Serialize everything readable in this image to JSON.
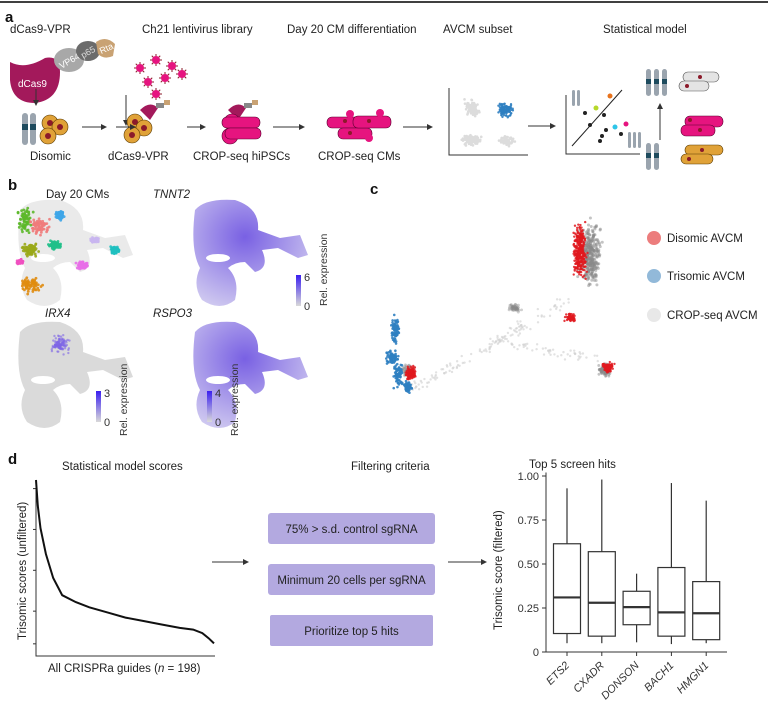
{
  "panel_labels": {
    "a": "a",
    "b": "b",
    "c": "c",
    "d": "d"
  },
  "panel_a": {
    "steps_top": [
      "dCas9-VPR",
      "Ch21 lentivirus library",
      "Day 20 CM differentiation",
      "AVCM subset",
      "Statistical model"
    ],
    "steps_bottom": [
      "Disomic",
      "dCas9-VPR",
      "CROP-seq hiPSCs",
      "CROP-seq CMs"
    ],
    "construct_domains": [
      "dCas9",
      "VP64",
      "p65",
      "Rta"
    ],
    "colors": {
      "dcas9": "#a3195b",
      "vp64": "#a8a8a8",
      "p65": "#6b6b6b",
      "rta": "#c9a273",
      "cell_disomic": "#e0a238",
      "cell_crop": "#e6147f",
      "nucleus": "#8b1a2a",
      "avcm_blue": "#2f7fc1",
      "scatter_grey": "#d8d8d8"
    }
  },
  "panel_b": {
    "subpanels": [
      {
        "title": "Day 20 CMs",
        "italic": false
      },
      {
        "title": "TNNT2",
        "italic": true,
        "colorbar_max": "6",
        "colorbar_min": "0"
      },
      {
        "title": "IRX4",
        "italic": true,
        "colorbar_max": "3",
        "colorbar_min": "0"
      },
      {
        "title": "RSPO3",
        "italic": true,
        "colorbar_max": "4",
        "colorbar_min": "0"
      }
    ],
    "colorbar_label": "Rel. expression",
    "colorbar_colors": {
      "low": "#d9d9d9",
      "high": "#3a1ff0"
    }
  },
  "panel_c": {
    "legend": [
      {
        "label": "Disomic AVCM",
        "color": "#ec7d7d"
      },
      {
        "label": "Trisomic AVCM",
        "color": "#92b9d9"
      },
      {
        "label": "CROP-seq AVCM",
        "color": "#e8e8e8"
      }
    ],
    "point_colors": {
      "disomic": "#e0191e",
      "trisomic": "#2f7fc1",
      "crop": "#8a8a8a"
    }
  },
  "panel_d": {
    "left_title": "Statistical model scores",
    "left_ylabel": "Trisomic scores (unfiltered)",
    "left_xlabel_pre": "All CRISPRa guides (",
    "left_xlabel_n": "n",
    "left_xlabel_post": " = 198)",
    "middle_title": "Filtering criteria",
    "criteria": [
      "75% > s.d. control sgRNA",
      "Minimum 20 cells per sgRNA",
      "Prioritize top 5 hits"
    ],
    "criteria_color": "#b3a9e0"
  },
  "chart_data": [
    {
      "type": "line",
      "title": "Statistical model scores",
      "xlabel": "All CRISPRa guides (n = 198)",
      "ylabel": "Trisomic scores (unfiltered)",
      "x": [
        1,
        3,
        6,
        12,
        20,
        30,
        45,
        60,
        80,
        100,
        120,
        140,
        160,
        175,
        185,
        192,
        198
      ],
      "y": [
        1.0,
        0.85,
        0.72,
        0.57,
        0.43,
        0.33,
        0.29,
        0.26,
        0.23,
        0.2,
        0.18,
        0.16,
        0.14,
        0.13,
        0.11,
        0.08,
        0.05
      ],
      "ylim": [
        0,
        1
      ],
      "yticks_labeled": false
    },
    {
      "type": "box",
      "title": "Top 5 screen hits",
      "ylabel": "Trisomic score (filtered)",
      "categories": [
        "ETS2",
        "CXADR",
        "DONSON",
        "BACH1",
        "HMGN1"
      ],
      "ylim": [
        0,
        1
      ],
      "yticks": [
        "0",
        "0.25",
        "0.50",
        "0.75",
        "1.00"
      ],
      "ytick_values": [
        0,
        0.25,
        0.5,
        0.75,
        1.0
      ],
      "boxes": [
        {
          "min": 0.05,
          "q1": 0.105,
          "median": 0.31,
          "q3": 0.615,
          "max": 0.93
        },
        {
          "min": 0.05,
          "q1": 0.09,
          "median": 0.28,
          "q3": 0.57,
          "max": 0.98
        },
        {
          "min": 0.055,
          "q1": 0.155,
          "median": 0.255,
          "q3": 0.345,
          "max": 0.445
        },
        {
          "min": 0.045,
          "q1": 0.09,
          "median": 0.225,
          "q3": 0.48,
          "max": 0.96
        },
        {
          "min": 0.05,
          "q1": 0.07,
          "median": 0.22,
          "q3": 0.4,
          "max": 0.86
        }
      ]
    }
  ]
}
